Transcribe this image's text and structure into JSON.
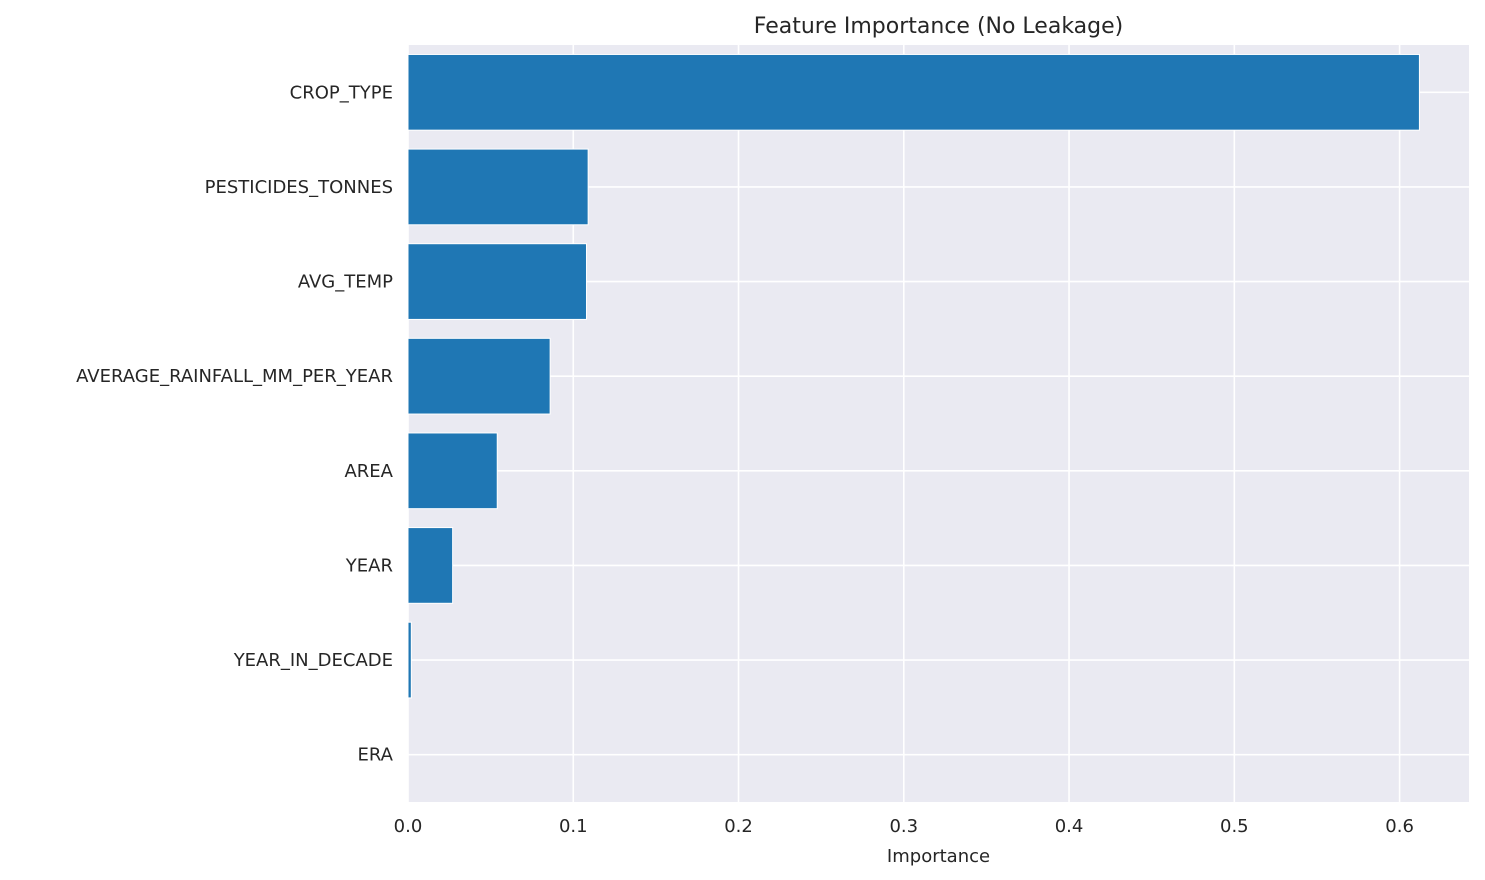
{
  "chart_data": {
    "type": "bar",
    "orientation": "horizontal",
    "title": "Feature Importance (No Leakage)",
    "xlabel": "Importance",
    "ylabel": "",
    "categories": [
      "CROP_TYPE",
      "PESTICIDES_TONNES",
      "AVG_TEMP",
      "AVERAGE_RAINFALL_MM_PER_YEAR",
      "AREA",
      "YEAR",
      "YEAR_IN_DECADE",
      "ERA"
    ],
    "values": [
      0.612,
      0.109,
      0.108,
      0.086,
      0.054,
      0.027,
      0.002,
      0.0
    ],
    "xlim": [
      0.0,
      0.642
    ],
    "xticks": [
      0.0,
      0.1,
      0.2,
      0.3,
      0.4,
      0.5,
      0.6
    ],
    "xtick_labels": [
      "0.0",
      "0.1",
      "0.2",
      "0.3",
      "0.4",
      "0.5",
      "0.6"
    ],
    "grid": true,
    "legend": "none",
    "colors": {
      "bar": "#1f77b4",
      "plot_background": "#eaeaf2",
      "grid": "#ffffff",
      "text": "#262626"
    }
  }
}
